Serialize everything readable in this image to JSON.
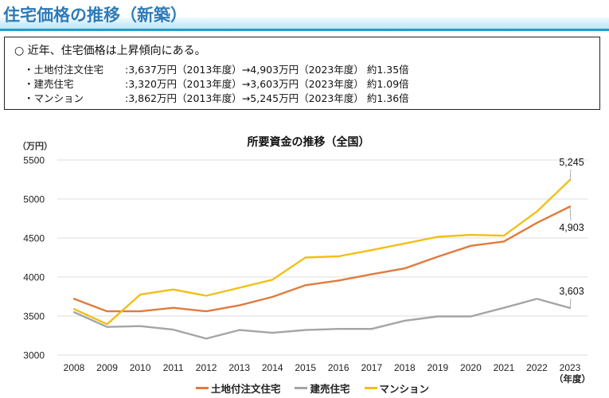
{
  "header": {
    "title": "住宅価格の推移（新築）"
  },
  "summary": {
    "lead": "○ 近年、住宅価格は上昇傾向にある。",
    "rows": [
      {
        "name": "・土地付注文住宅",
        "detail": ":3,637万円（2013年度）→4,903万円（2023年度） 約1.35倍"
      },
      {
        "name": "・建売住宅",
        "detail": ":3,320万円（2013年度）→3,603万円（2023年度） 約1.09倍"
      },
      {
        "name": "・マンション",
        "detail": ":3,862万円（2013年度）→5,245万円（2023年度） 約1.36倍"
      }
    ]
  },
  "chart_data": {
    "type": "line",
    "title": "所要資金の推移（全国）",
    "ylabel": "（万円）",
    "xlabel": "（年度）",
    "ylim": [
      3000,
      5500
    ],
    "yticks": [
      3000,
      3500,
      4000,
      4500,
      5000,
      5500
    ],
    "grid": true,
    "legend_position": "bottom",
    "x": [
      "2008",
      "2009",
      "2010",
      "2011",
      "2012",
      "2013",
      "2014",
      "2015",
      "2016",
      "2017",
      "2018",
      "2019",
      "2020",
      "2021",
      "2022",
      "2023"
    ],
    "series": [
      {
        "name": "土地付注文住宅",
        "color": "#e07b3c",
        "values": [
          3720,
          3560,
          3560,
          3605,
          3560,
          3637,
          3745,
          3895,
          3955,
          4035,
          4110,
          4260,
          4400,
          4455,
          4695,
          4903
        ],
        "end_label": "4,903"
      },
      {
        "name": "建売住宅",
        "color": "#a5a5a5",
        "values": [
          3550,
          3360,
          3370,
          3325,
          3210,
          3320,
          3285,
          3320,
          3335,
          3335,
          3440,
          3495,
          3495,
          3605,
          3720,
          3603
        ],
        "end_label": "3,603"
      },
      {
        "name": "マンション",
        "color": "#f2bf17",
        "values": [
          3590,
          3395,
          3775,
          3840,
          3760,
          3862,
          3965,
          4250,
          4265,
          4345,
          4430,
          4515,
          4540,
          4530,
          4840,
          5245
        ],
        "end_label": "5,245"
      }
    ]
  }
}
